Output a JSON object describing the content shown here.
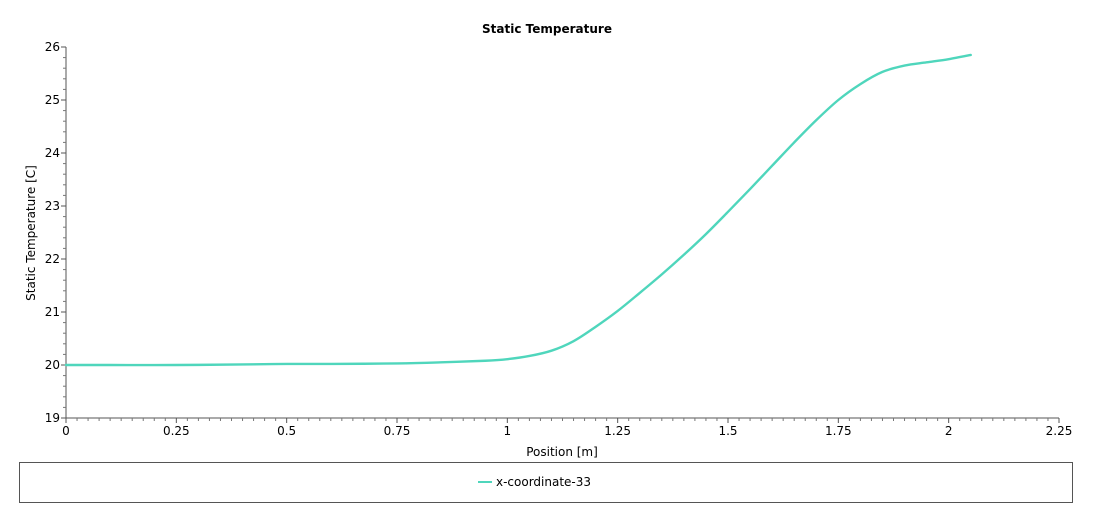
{
  "chart_data": {
    "type": "line",
    "title": "Static Temperature",
    "xlabel": "Position [m]",
    "ylabel": "Static Temperature [C]",
    "xlim": [
      0,
      2.25
    ],
    "ylim": [
      19,
      26
    ],
    "x_ticks": [
      0,
      0.25,
      0.5,
      0.75,
      1,
      1.25,
      1.5,
      1.75,
      2,
      2.25
    ],
    "x_tick_labels": [
      "0",
      "0.25",
      "0.5",
      "0.75",
      "1",
      "1.25",
      "1.5",
      "1.75",
      "2",
      "2.25"
    ],
    "y_ticks": [
      19,
      20,
      21,
      22,
      23,
      24,
      25,
      26
    ],
    "y_tick_labels": [
      "19",
      "20",
      "21",
      "22",
      "23",
      "24",
      "25",
      "26"
    ],
    "grid": false,
    "legend_position": "bottom",
    "series": [
      {
        "name": "x-coordinate-33",
        "color": "#4fd6bc",
        "x": [
          0,
          0.1,
          0.25,
          0.4,
          0.5,
          0.6,
          0.75,
          0.85,
          0.95,
          1.0,
          1.05,
          1.1,
          1.15,
          1.2,
          1.25,
          1.3,
          1.35,
          1.4,
          1.45,
          1.5,
          1.55,
          1.6,
          1.65,
          1.7,
          1.75,
          1.8,
          1.85,
          1.9,
          1.95,
          2.0,
          2.05
        ],
        "y": [
          20.0,
          20.0,
          20.0,
          20.01,
          20.02,
          20.02,
          20.03,
          20.05,
          20.08,
          20.11,
          20.17,
          20.27,
          20.45,
          20.72,
          21.02,
          21.36,
          21.71,
          22.08,
          22.47,
          22.89,
          23.32,
          23.76,
          24.2,
          24.62,
          25.0,
          25.3,
          25.53,
          25.65,
          25.71,
          25.77,
          25.85
        ]
      }
    ]
  },
  "legend": {
    "items": [
      {
        "label": "x-coordinate-33",
        "color": "#4fd6bc"
      }
    ]
  }
}
